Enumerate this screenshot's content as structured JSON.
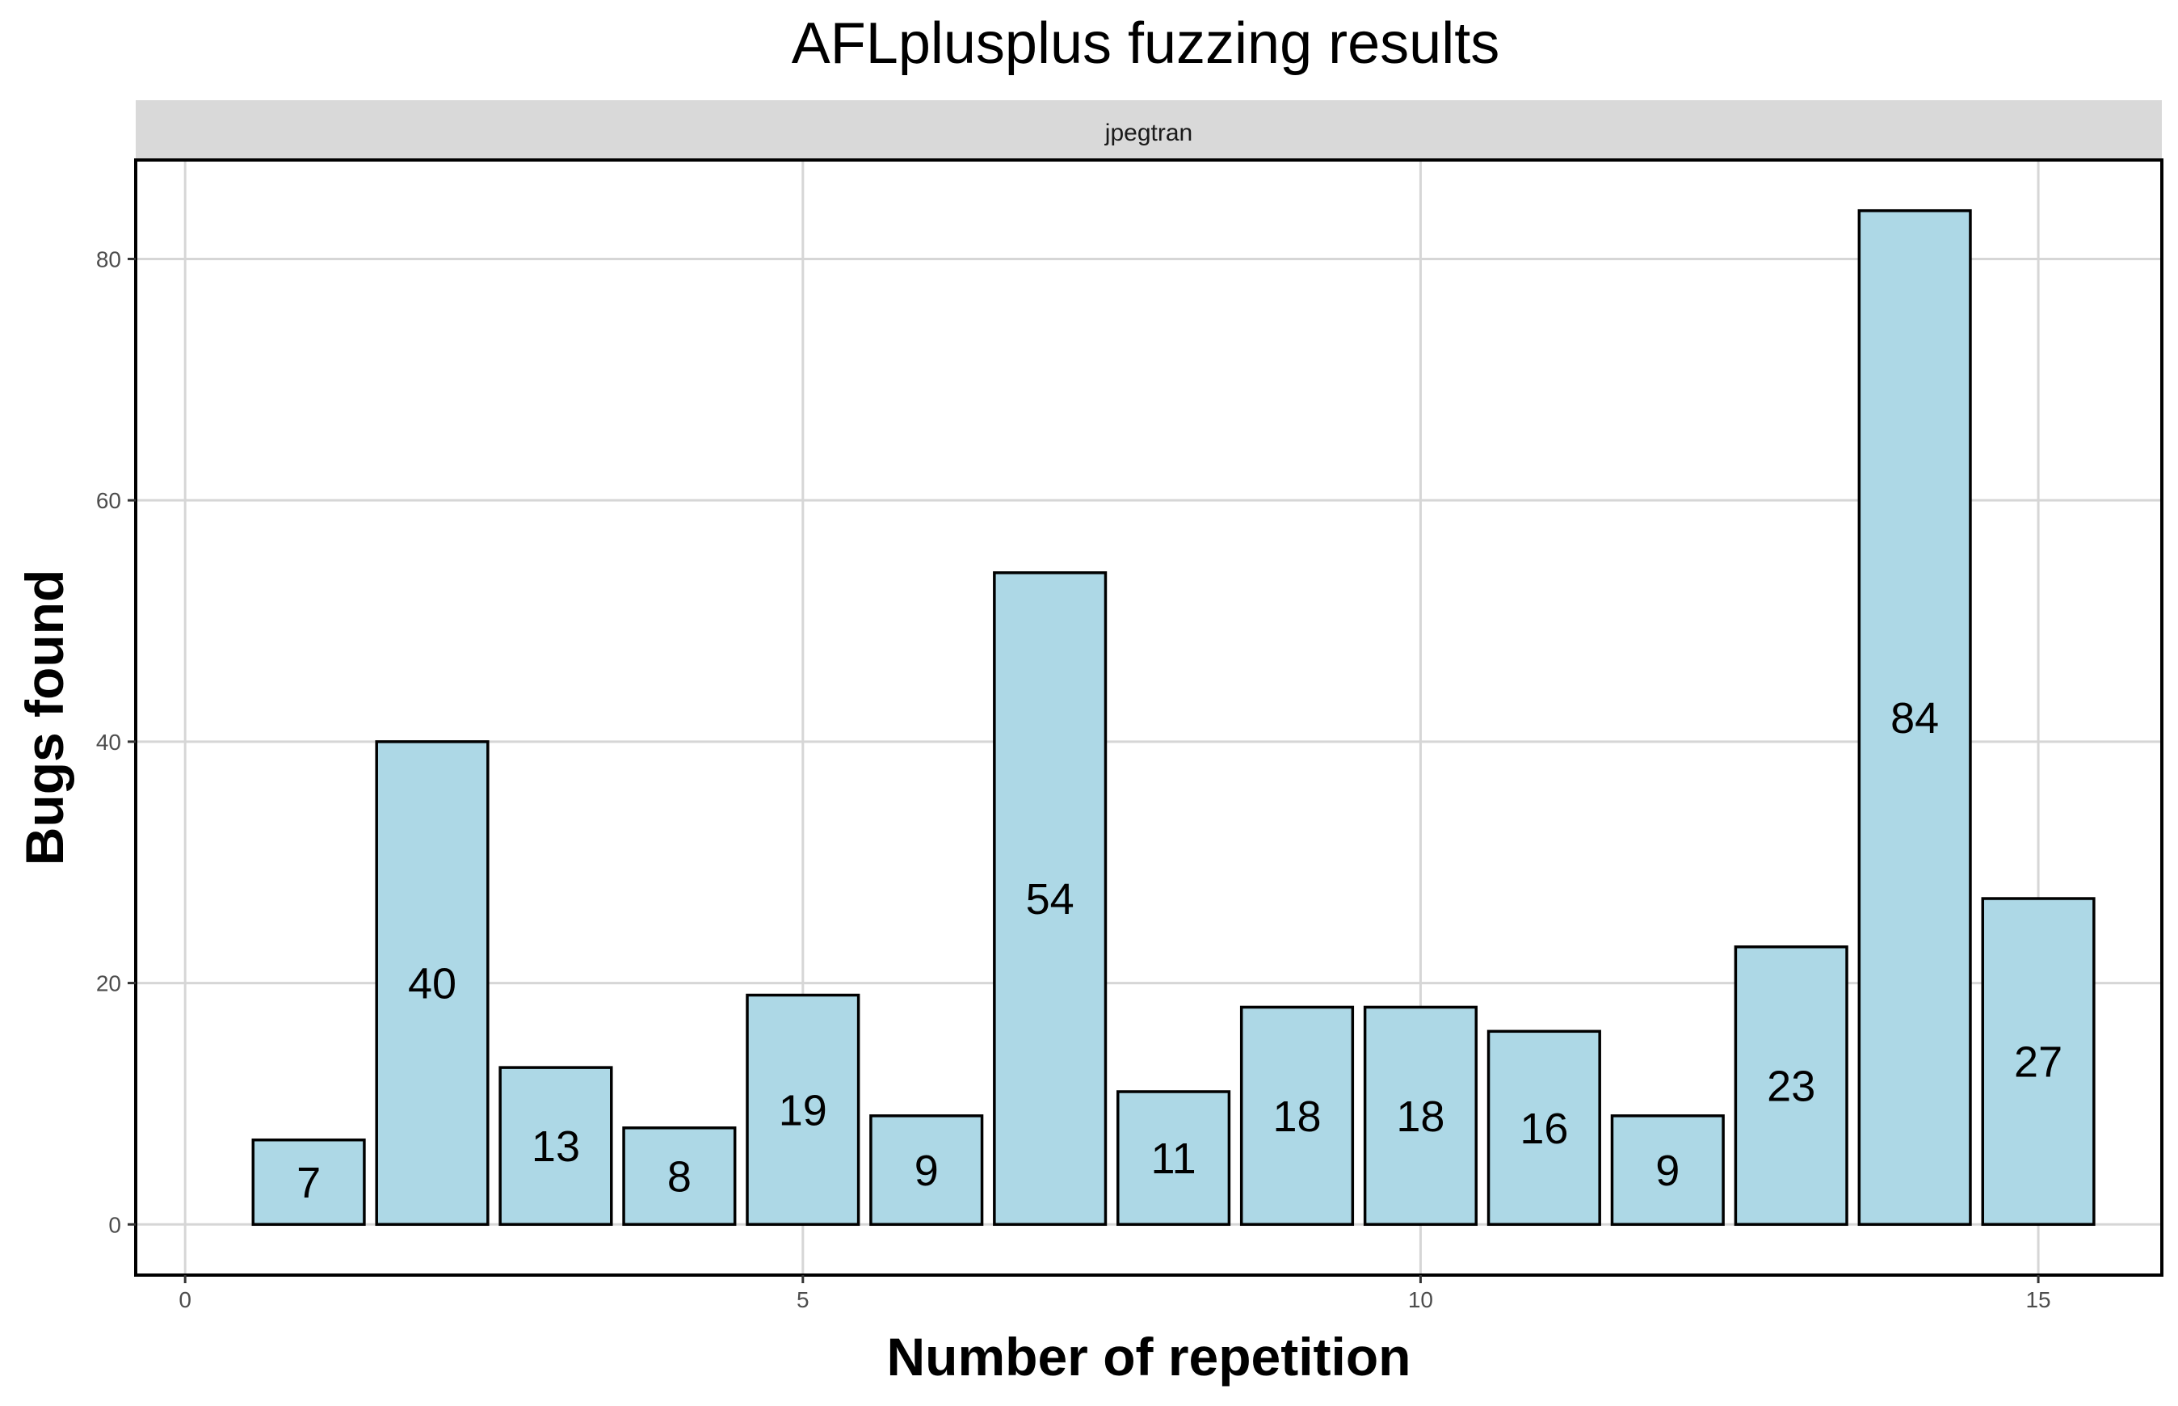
{
  "chart_data": {
    "type": "bar",
    "title": "AFLplusplus fuzzing results",
    "facet_label": "jpegtran",
    "xlabel": "Number of repetition",
    "ylabel": "Bugs found",
    "x": [
      1,
      2,
      3,
      4,
      5,
      6,
      7,
      8,
      9,
      10,
      11,
      12,
      13,
      14,
      15
    ],
    "values": [
      7,
      40,
      13,
      8,
      19,
      9,
      54,
      11,
      18,
      18,
      16,
      9,
      23,
      84,
      27
    ],
    "xlim": [
      -0.4,
      16.0
    ],
    "ylim": [
      -4.2,
      88.2
    ],
    "x_ticks": [
      0,
      5,
      10,
      15
    ],
    "y_ticks": [
      0,
      20,
      40,
      60,
      80
    ],
    "grid": true,
    "bar_color": "#add8e6",
    "bar_outline": "#000000",
    "strip_color": "#d9d9d9",
    "legend": "none"
  }
}
